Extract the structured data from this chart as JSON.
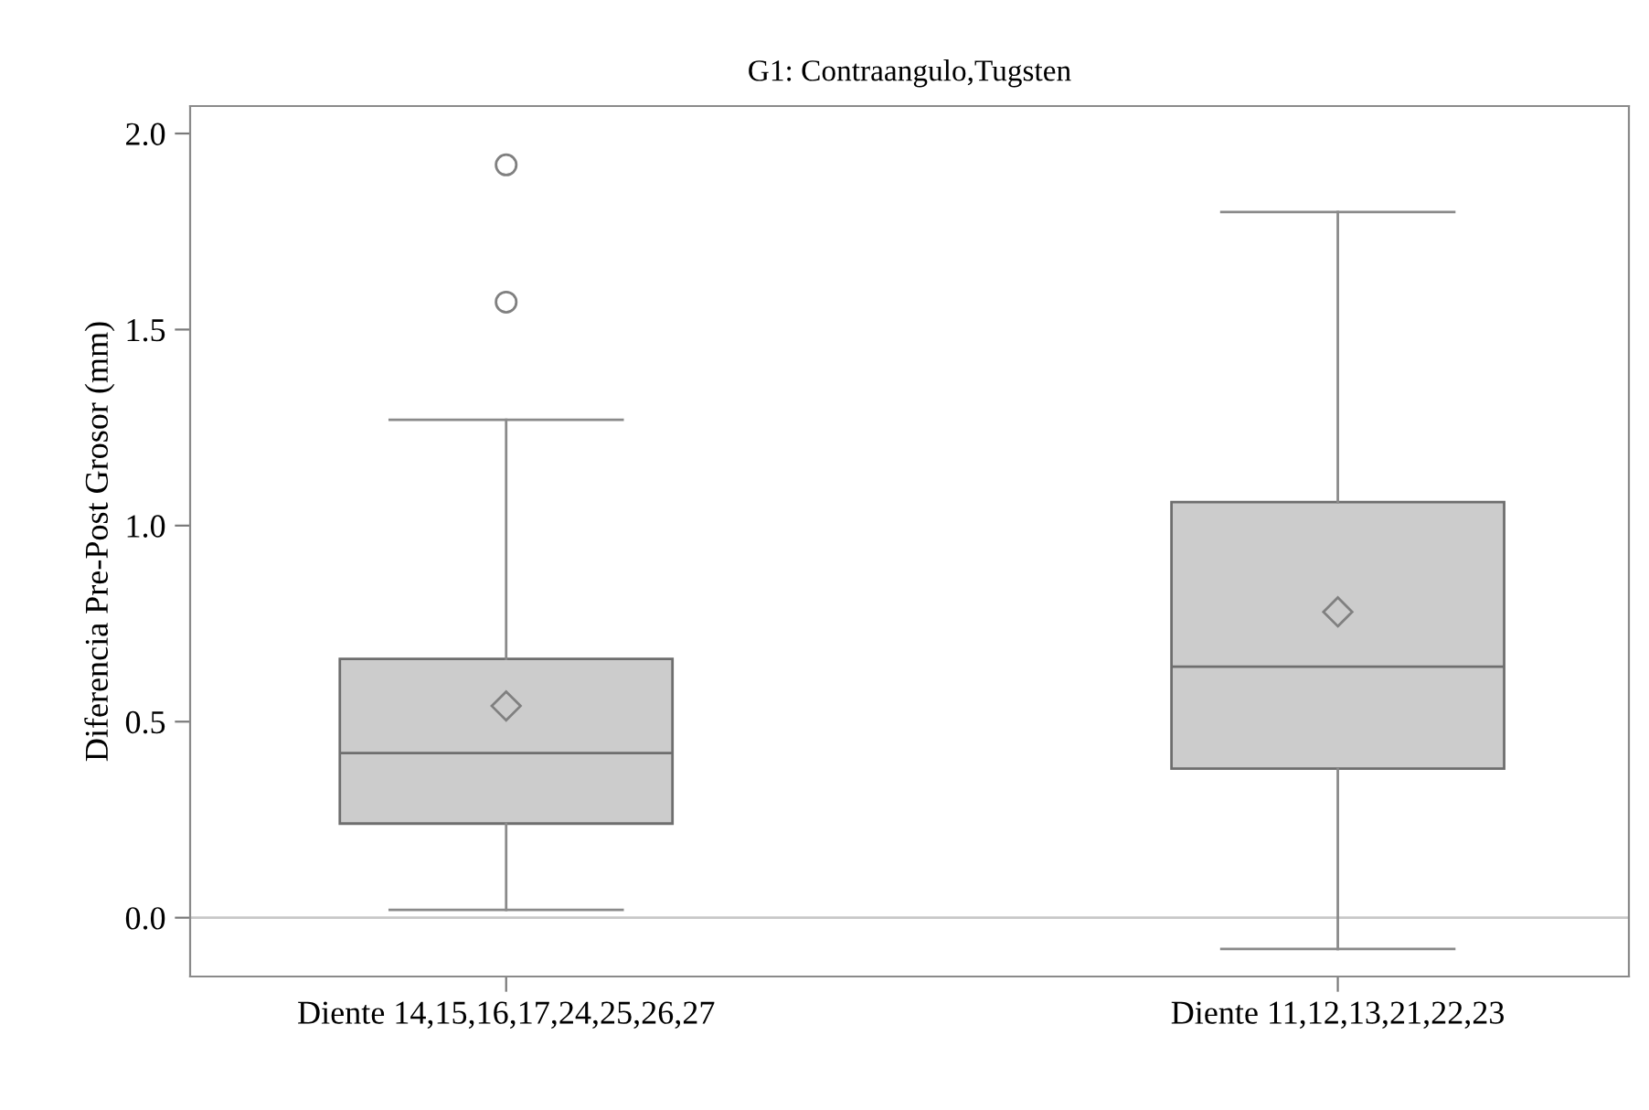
{
  "chart_data": {
    "type": "box",
    "title": "G1: Contraangulo,Tugsten",
    "ylabel": "Diferencia Pre-Post Grosor (mm)",
    "categories": [
      "Diente 14,15,16,17,24,25,26,27",
      "Diente 11,12,13,21,22,23"
    ],
    "boxes": [
      {
        "low": 0.02,
        "q1": 0.24,
        "median": 0.42,
        "q3": 0.66,
        "high": 1.27,
        "mean": 0.54,
        "outliers": [
          1.57,
          1.92
        ]
      },
      {
        "low": -0.08,
        "q1": 0.38,
        "median": 0.64,
        "q3": 1.06,
        "high": 1.8,
        "mean": 0.78
      }
    ],
    "color": "#cccccc",
    "ylim": [
      -0.15,
      2.07
    ],
    "yticks": [
      {
        "value": 0,
        "label": "0.0"
      },
      0.5,
      {
        "value": 1,
        "label": "1.0"
      },
      1.5,
      {
        "value": 2,
        "label": "2.0"
      }
    ],
    "ref_lines": [
      {
        "axis": "y",
        "value": 0,
        "color": "#c8c8c8"
      }
    ],
    "grid": false,
    "legend": false
  }
}
